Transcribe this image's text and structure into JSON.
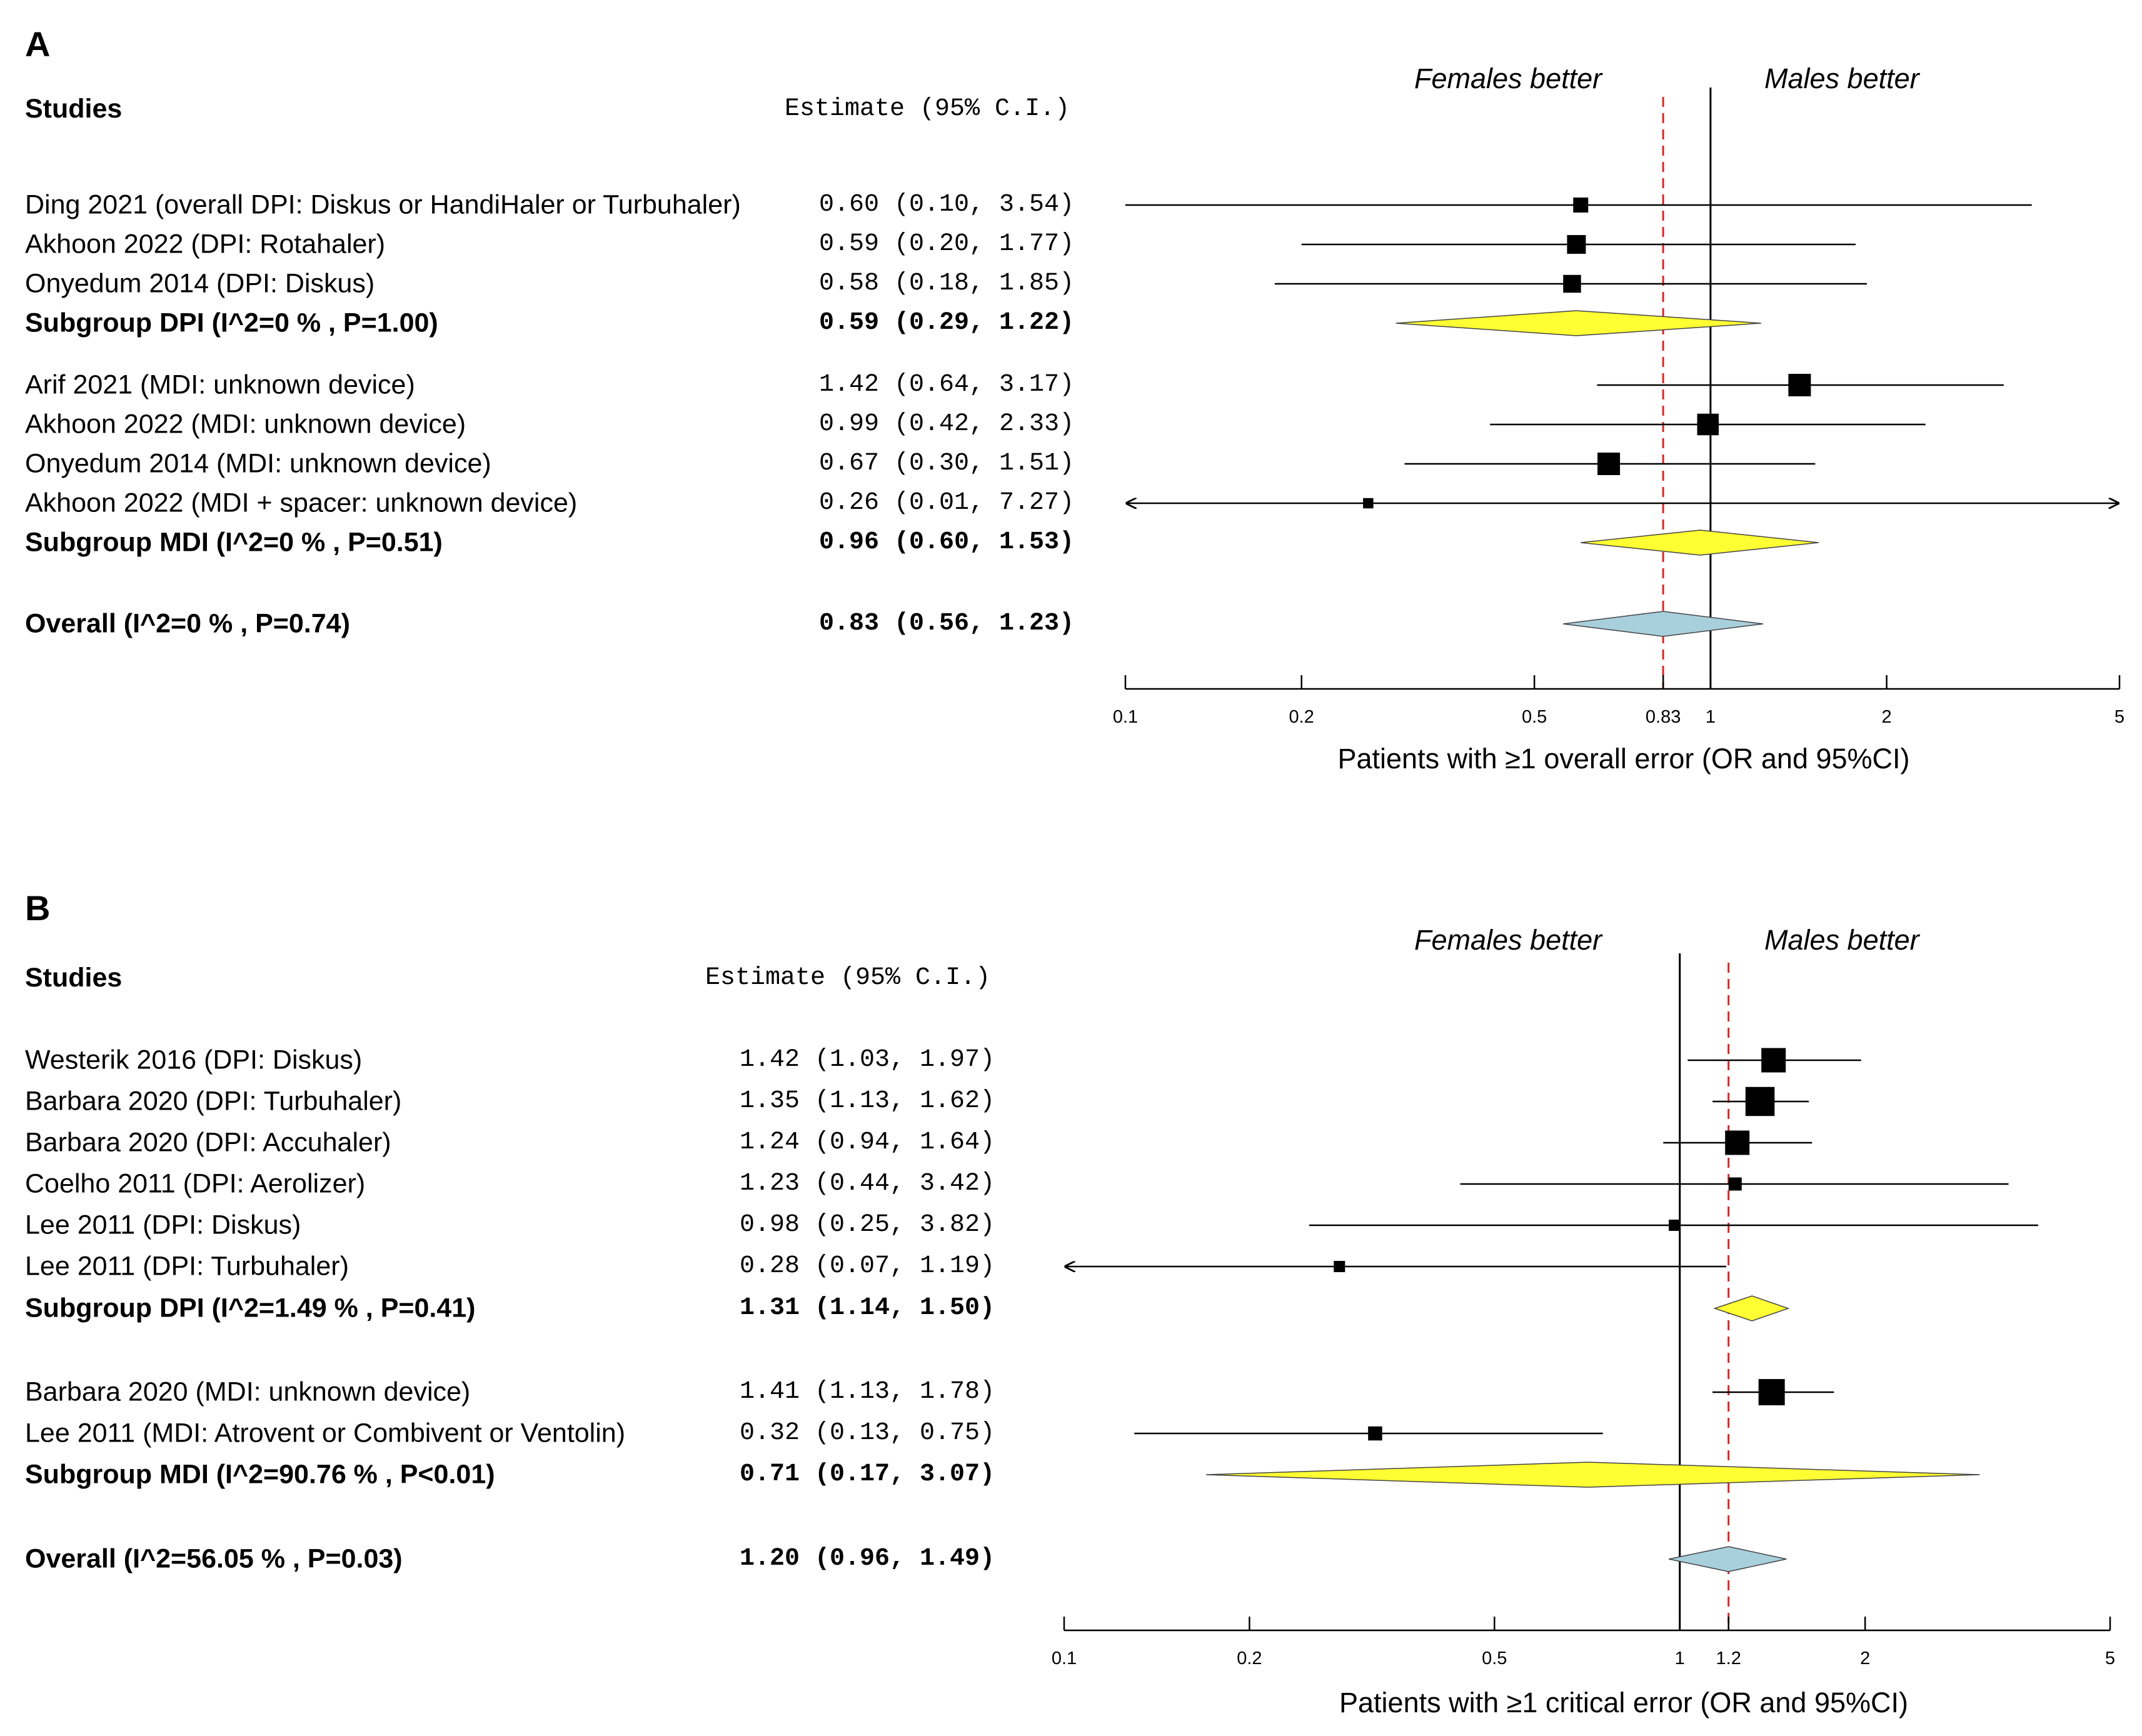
{
  "colors": {
    "subgroup_diamond": "#ffff33",
    "overall_diamond": "#a8cfdc",
    "reference_line": "#d62728"
  },
  "chart_data": [
    {
      "type": "forest",
      "panel": "A",
      "header_left": "Studies",
      "header_est": "Estimate (95% C.I.)",
      "left_side_label": "Females better",
      "right_side_label": "Males better",
      "xlabel": "Patients with ≥1 overall error (OR and 95%CI)",
      "xscale": "log",
      "xlim": [
        0.1,
        5
      ],
      "ticks": [
        0.1,
        0.2,
        0.5,
        0.83,
        1,
        2,
        5
      ],
      "tick_labels": [
        "0.1",
        "0.2",
        "0.5",
        "0.83",
        "1",
        "2",
        "5"
      ],
      "reference_value": 0.83,
      "null_value": 1,
      "rows": [
        {
          "label": "Ding 2021 (overall DPI: Diskus or HandiHaler or Turbuhaler)",
          "est_text": "0.60 (0.10, 3.54)",
          "est": 0.6,
          "lo": 0.1,
          "hi": 3.54,
          "kind": "study",
          "weight": 0.8
        },
        {
          "label": "Akhoon 2022 (DPI: Rotahaler)",
          "est_text": "0.59 (0.20, 1.77)",
          "est": 0.59,
          "lo": 0.2,
          "hi": 1.77,
          "kind": "study",
          "weight": 1.0
        },
        {
          "label": "Onyedum 2014 (DPI: Diskus)",
          "est_text": "0.58 (0.18, 1.85)",
          "est": 0.58,
          "lo": 0.18,
          "hi": 1.85,
          "kind": "study",
          "weight": 0.95
        },
        {
          "label": "Subgroup DPI (I^2=0 % , P=1.00)",
          "est_text": "0.59 (0.29, 1.22)",
          "est": 0.59,
          "lo": 0.29,
          "hi": 1.22,
          "kind": "subgroup"
        },
        {
          "label": "Arif 2021 (MDI: unknown device)",
          "est_text": "1.42 (0.64, 3.17)",
          "est": 1.42,
          "lo": 0.64,
          "hi": 3.17,
          "kind": "study",
          "weight": 1.2
        },
        {
          "label": "Akhoon 2022 (MDI: unknown device)",
          "est_text": "0.99 (0.42, 2.33)",
          "est": 0.99,
          "lo": 0.42,
          "hi": 2.33,
          "kind": "study",
          "weight": 1.15
        },
        {
          "label": "Onyedum 2014 (MDI: unknown device)",
          "est_text": "0.67 (0.30, 1.51)",
          "est": 0.67,
          "lo": 0.3,
          "hi": 1.51,
          "kind": "study",
          "weight": 1.2
        },
        {
          "label": "Akhoon 2022 (MDI + spacer: unknown device)",
          "est_text": "0.26 (0.01, 7.27)",
          "est": 0.26,
          "lo": 0.01,
          "hi": 7.27,
          "kind": "study",
          "weight": 0.55
        },
        {
          "label": "Subgroup MDI (I^2=0 % , P=0.51)",
          "est_text": "0.96 (0.60, 1.53)",
          "est": 0.96,
          "lo": 0.6,
          "hi": 1.53,
          "kind": "subgroup"
        },
        {
          "label": "Overall (I^2=0 % , P=0.74)",
          "est_text": "0.83 (0.56, 1.23)",
          "est": 0.83,
          "lo": 0.56,
          "hi": 1.23,
          "kind": "overall"
        }
      ]
    },
    {
      "type": "forest",
      "panel": "B",
      "header_left": "Studies",
      "header_est": "Estimate (95% C.I.)",
      "left_side_label": "Females better",
      "right_side_label": "Males better",
      "xlabel": "Patients with ≥1 critical error (OR and 95%CI)",
      "xscale": "log",
      "xlim": [
        0.1,
        5
      ],
      "ticks": [
        0.1,
        0.2,
        0.5,
        1,
        1.2,
        2,
        5
      ],
      "tick_labels": [
        "0.1",
        "0.2",
        "0.5",
        "1",
        "1.2",
        "2",
        "5"
      ],
      "reference_value": 1.2,
      "null_value": 1,
      "rows": [
        {
          "label": "Westerik 2016 (DPI: Diskus)",
          "est_text": "1.42 (1.03, 1.97)",
          "est": 1.42,
          "lo": 1.03,
          "hi": 1.97,
          "kind": "study",
          "weight": 1.3
        },
        {
          "label": "Barbara 2020 (DPI: Turbuhaler)",
          "est_text": "1.35 (1.13, 1.62)",
          "est": 1.35,
          "lo": 1.13,
          "hi": 1.62,
          "kind": "study",
          "weight": 1.55
        },
        {
          "label": "Barbara 2020 (DPI: Accuhaler)",
          "est_text": "1.24 (0.94, 1.64)",
          "est": 1.24,
          "lo": 0.94,
          "hi": 1.64,
          "kind": "study",
          "weight": 1.3
        },
        {
          "label": "Coelho 2011 (DPI: Aerolizer)",
          "est_text": "1.23 (0.44, 3.42)",
          "est": 1.23,
          "lo": 0.44,
          "hi": 3.42,
          "kind": "study",
          "weight": 0.7
        },
        {
          "label": "Lee 2011 (DPI: Diskus)",
          "est_text": "0.98 (0.25, 3.82)",
          "est": 0.98,
          "lo": 0.25,
          "hi": 3.82,
          "kind": "study",
          "weight": 0.6
        },
        {
          "label": "Lee 2011 (DPI: Turbuhaler)",
          "est_text": "0.28 (0.07, 1.19)",
          "est": 0.28,
          "lo": 0.07,
          "hi": 1.19,
          "kind": "study",
          "weight": 0.6
        },
        {
          "label": "Subgroup DPI (I^2=1.49 % , P=0.41)",
          "est_text": "1.31 (1.14, 1.50)",
          "est": 1.31,
          "lo": 1.14,
          "hi": 1.5,
          "kind": "subgroup"
        },
        {
          "label": "Barbara 2020 (MDI: unknown device)",
          "est_text": "1.41 (1.13, 1.78)",
          "est": 1.41,
          "lo": 1.13,
          "hi": 1.78,
          "kind": "study",
          "weight": 1.4
        },
        {
          "label": "Lee 2011 (MDI: Atrovent or Combivent or Ventolin)",
          "est_text": "0.32 (0.13, 0.75)",
          "est": 0.32,
          "lo": 0.13,
          "hi": 0.75,
          "kind": "study",
          "weight": 0.75
        },
        {
          "label": "Subgroup MDI (I^2=90.76 % , P<0.01)",
          "est_text": "0.71 (0.17, 3.07)",
          "est": 0.71,
          "lo": 0.17,
          "hi": 3.07,
          "kind": "subgroup"
        },
        {
          "label": "Overall (I^2=56.05 % , P=0.03)",
          "est_text": "1.20 (0.96, 1.49)",
          "est": 1.2,
          "lo": 0.96,
          "hi": 1.49,
          "kind": "overall"
        }
      ]
    }
  ]
}
